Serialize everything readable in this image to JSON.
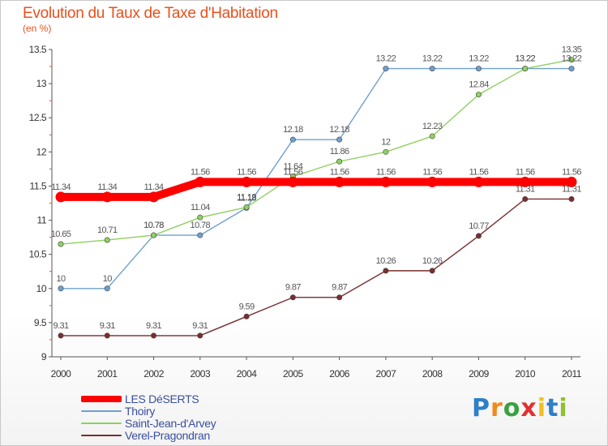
{
  "chart_data": {
    "type": "line",
    "title": "Evolution du Taux de Taxe d'Habitation",
    "subtitle": "(en %)",
    "x": [
      "2000",
      "2001",
      "2002",
      "2003",
      "2004",
      "2005",
      "2006",
      "2007",
      "2008",
      "2009",
      "2010",
      "2011"
    ],
    "ylim": [
      9,
      13.5
    ],
    "yticks": [
      "9",
      "9.5",
      "10",
      "10.5",
      "11",
      "11.5",
      "12",
      "12.5",
      "13",
      "13.5"
    ],
    "grid": false,
    "legend_position": "bottom-left",
    "series": [
      {
        "name": "LES DéSERTS",
        "color": "#ff0000",
        "values": [
          11.34,
          11.34,
          11.34,
          11.56,
          11.56,
          11.56,
          11.56,
          11.56,
          11.56,
          11.56,
          11.56,
          11.56
        ],
        "labels": [
          "11.34",
          "11.34",
          "11.34",
          "11.56",
          "11.56",
          "11.56",
          "11.56",
          "11.56",
          "11.56",
          "11.56",
          "11.56",
          "11.56"
        ]
      },
      {
        "name": "Thoiry",
        "color": "#6ea0d0",
        "values": [
          10,
          10,
          10.78,
          10.78,
          11.18,
          12.18,
          12.18,
          13.22,
          13.22,
          13.22,
          13.22,
          13.22
        ],
        "labels": [
          "10",
          "10",
          "10.78",
          "10.78",
          "11.18",
          "12.18",
          "12.18",
          "13.22",
          "13.22",
          "13.22",
          "13.22",
          "13.22"
        ]
      },
      {
        "name": "Saint-Jean-d'Arvey",
        "color": "#90d060",
        "values": [
          10.65,
          10.71,
          10.78,
          11.04,
          11.19,
          11.64,
          11.86,
          12,
          12.23,
          12.84,
          13.22,
          13.35
        ],
        "labels": [
          "10.65",
          "10.71",
          "10.78",
          "11.04",
          "11.19",
          "11.64",
          "11.86",
          "12",
          "12.23",
          "12.84",
          "13.22",
          "13.35"
        ]
      },
      {
        "name": "Verel-Pragondran",
        "color": "#7a2e2e",
        "values": [
          9.31,
          9.31,
          9.31,
          9.31,
          9.59,
          9.87,
          9.87,
          10.26,
          10.26,
          10.77,
          11.31,
          11.31
        ],
        "labels": [
          "9.31",
          "9.31",
          "9.31",
          "9.31",
          "9.59",
          "9.87",
          "9.87",
          "10.26",
          "10.26",
          "10.77",
          "11.31",
          "11.31"
        ]
      }
    ]
  },
  "branding": {
    "letters": [
      "P",
      "r",
      "o",
      "x",
      "i",
      "t",
      "i"
    ],
    "colors": [
      "#2d7fc8",
      "#f08a1c",
      "#3aa040",
      "#e23030",
      "#f0c020",
      "#2d7fc8",
      "#90c030"
    ]
  }
}
